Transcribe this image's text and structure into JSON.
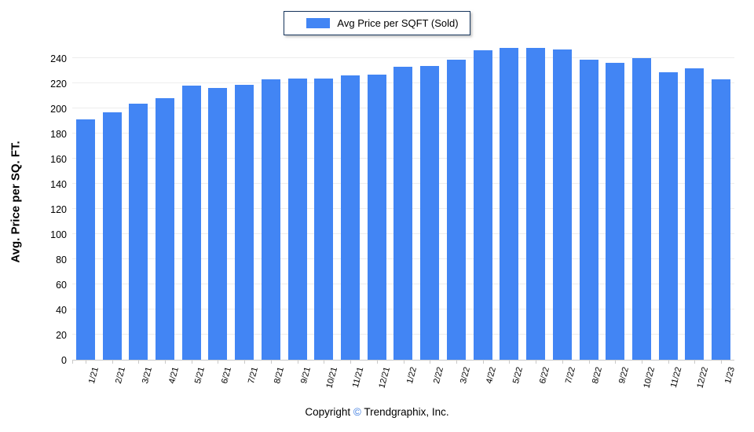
{
  "legend": {
    "label": "Avg Price per SQFT (Sold)",
    "swatch_color": "#4285f4"
  },
  "chart_data": {
    "type": "bar",
    "title": "",
    "series_name": "Avg Price per SQFT (Sold)",
    "categories": [
      "1/21",
      "2/21",
      "3/21",
      "4/21",
      "5/21",
      "6/21",
      "7/21",
      "8/21",
      "9/21",
      "10/21",
      "11/21",
      "12/21",
      "1/22",
      "2/22",
      "3/22",
      "4/22",
      "5/22",
      "6/22",
      "7/22",
      "8/22",
      "9/22",
      "10/22",
      "11/22",
      "12/22",
      "1/23"
    ],
    "values": [
      191,
      197,
      204,
      208,
      218,
      216,
      219,
      223,
      224,
      224,
      226,
      227,
      233,
      234,
      239,
      246,
      248,
      248,
      247,
      239,
      236,
      240,
      229,
      232,
      223
    ],
    "xlabel": "",
    "ylabel": "Avg. Price per SQ. FT.",
    "ylim": [
      0,
      240
    ],
    "yticks": [
      0,
      20,
      40,
      60,
      80,
      100,
      120,
      140,
      160,
      180,
      200,
      220,
      240
    ],
    "grid": "horizontal",
    "legend_position": "top-center",
    "bar_color": "#4285f4"
  },
  "footer": {
    "prefix": "Copyright",
    "symbol": "©",
    "suffix": "Trendgraphix, Inc.",
    "symbol_color": "#3f7de0"
  }
}
